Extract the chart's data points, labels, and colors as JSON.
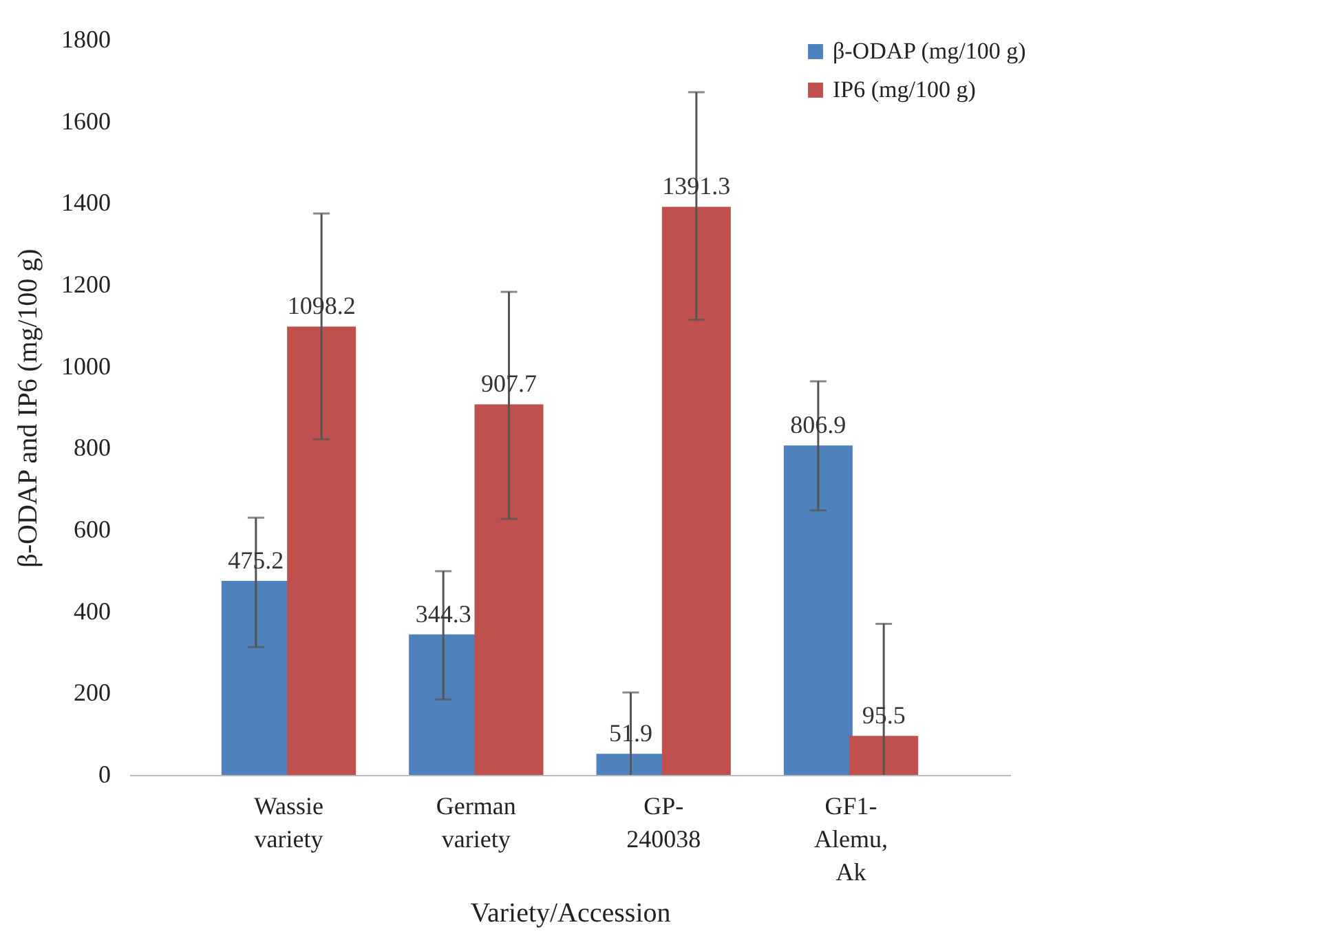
{
  "chart_data": {
    "type": "bar",
    "xlabel": "Variety/Accession",
    "ylabel": "β-ODAP and IP6 (mg/100 g)",
    "categories": [
      "Wassie variety",
      "German variety",
      "GP-240038",
      "GF1-Alemu, Ak"
    ],
    "series": [
      {
        "name": "β-ODAP (mg/100 g)",
        "color": "#4f81bd",
        "values": [
          475.2,
          344.3,
          51.9,
          806.9
        ],
        "errors": [
          [
            313,
            630
          ],
          [
            185,
            499
          ],
          [
            0,
            202
          ],
          [
            648,
            964
          ]
        ]
      },
      {
        "name": "IP6 (mg/100 g)",
        "color": "#c0504d",
        "values": [
          1098.2,
          907.7,
          1391.3,
          95.5
        ],
        "errors": [
          [
            822,
            1375
          ],
          [
            627,
            1183
          ],
          [
            1115,
            1672
          ],
          [
            0,
            370
          ]
        ]
      }
    ],
    "ylim": [
      0,
      1800
    ],
    "yticks": [
      0,
      200,
      400,
      600,
      800,
      1000,
      1200,
      1400,
      1600,
      1800
    ],
    "data_labels": true,
    "legend": "top right"
  }
}
